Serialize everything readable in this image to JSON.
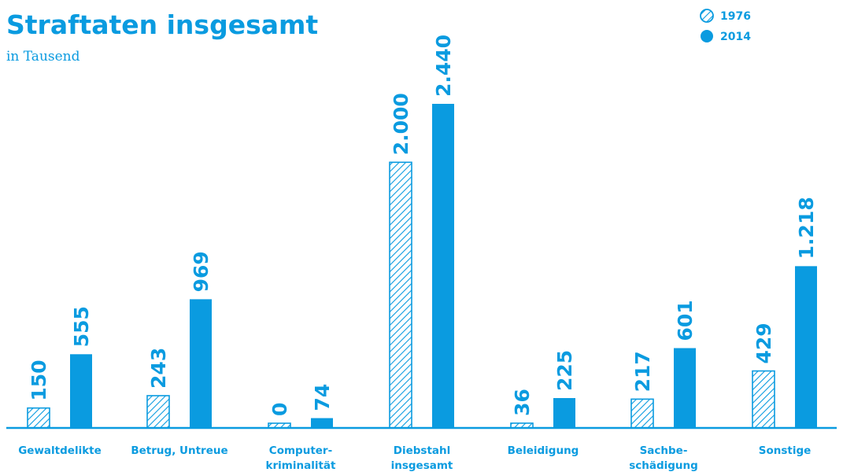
{
  "colors": {
    "accent": "#0a9be0",
    "background": "#ffffff"
  },
  "chart_data": {
    "type": "bar",
    "title": "Straftaten insgesamt",
    "subtitle": "in Tausend",
    "categories": [
      [
        "Gewaltdelikte"
      ],
      [
        "Betrug, Untreue"
      ],
      [
        "Computer-",
        "kriminalität"
      ],
      [
        "Diebstahl",
        "insgesamt"
      ],
      [
        "Beleidigung"
      ],
      [
        "Sachbe-",
        "schädigung"
      ],
      [
        "Sonstige"
      ]
    ],
    "series": [
      {
        "name": "1976",
        "fill": "hatched",
        "values": [
          150,
          243,
          0,
          2000,
          36,
          217,
          429
        ],
        "labels": [
          "150",
          "243",
          "0",
          "2.000",
          "36",
          "217",
          "429"
        ]
      },
      {
        "name": "2014",
        "fill": "solid",
        "values": [
          555,
          969,
          74,
          2440,
          225,
          601,
          1218
        ],
        "labels": [
          "555",
          "969",
          "74",
          "2.440",
          "225",
          "601",
          "1.218"
        ]
      }
    ],
    "grid": false,
    "legend_position": "top-right"
  }
}
